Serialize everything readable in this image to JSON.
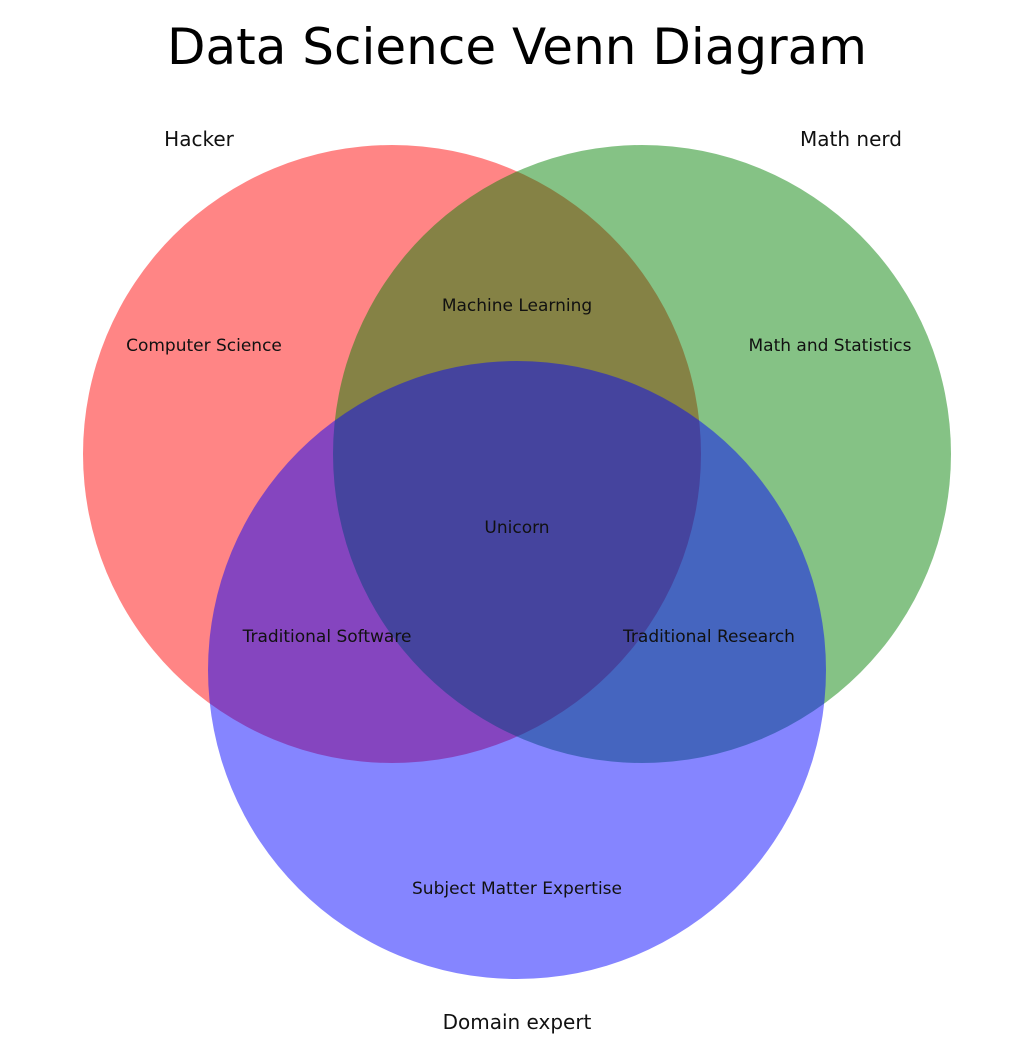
{
  "title": "Data Science Venn Diagram",
  "sets": [
    {
      "key": "hacker",
      "label": "Hacker",
      "color": "#ff0000"
    },
    {
      "key": "math",
      "label": "Math nerd",
      "color": "#008000"
    },
    {
      "key": "domain",
      "label": "Domain expert",
      "color": "#0000ff"
    }
  ],
  "fill_opacity": 0.48,
  "regions": {
    "hacker_only": "Computer Science",
    "math_only": "Math and Statistics",
    "domain_only": "Subject Matter Expertise",
    "hacker_math": "Machine Learning",
    "hacker_domain": "Traditional Software",
    "math_domain": "Traditional Research",
    "all": "Unicorn"
  }
}
